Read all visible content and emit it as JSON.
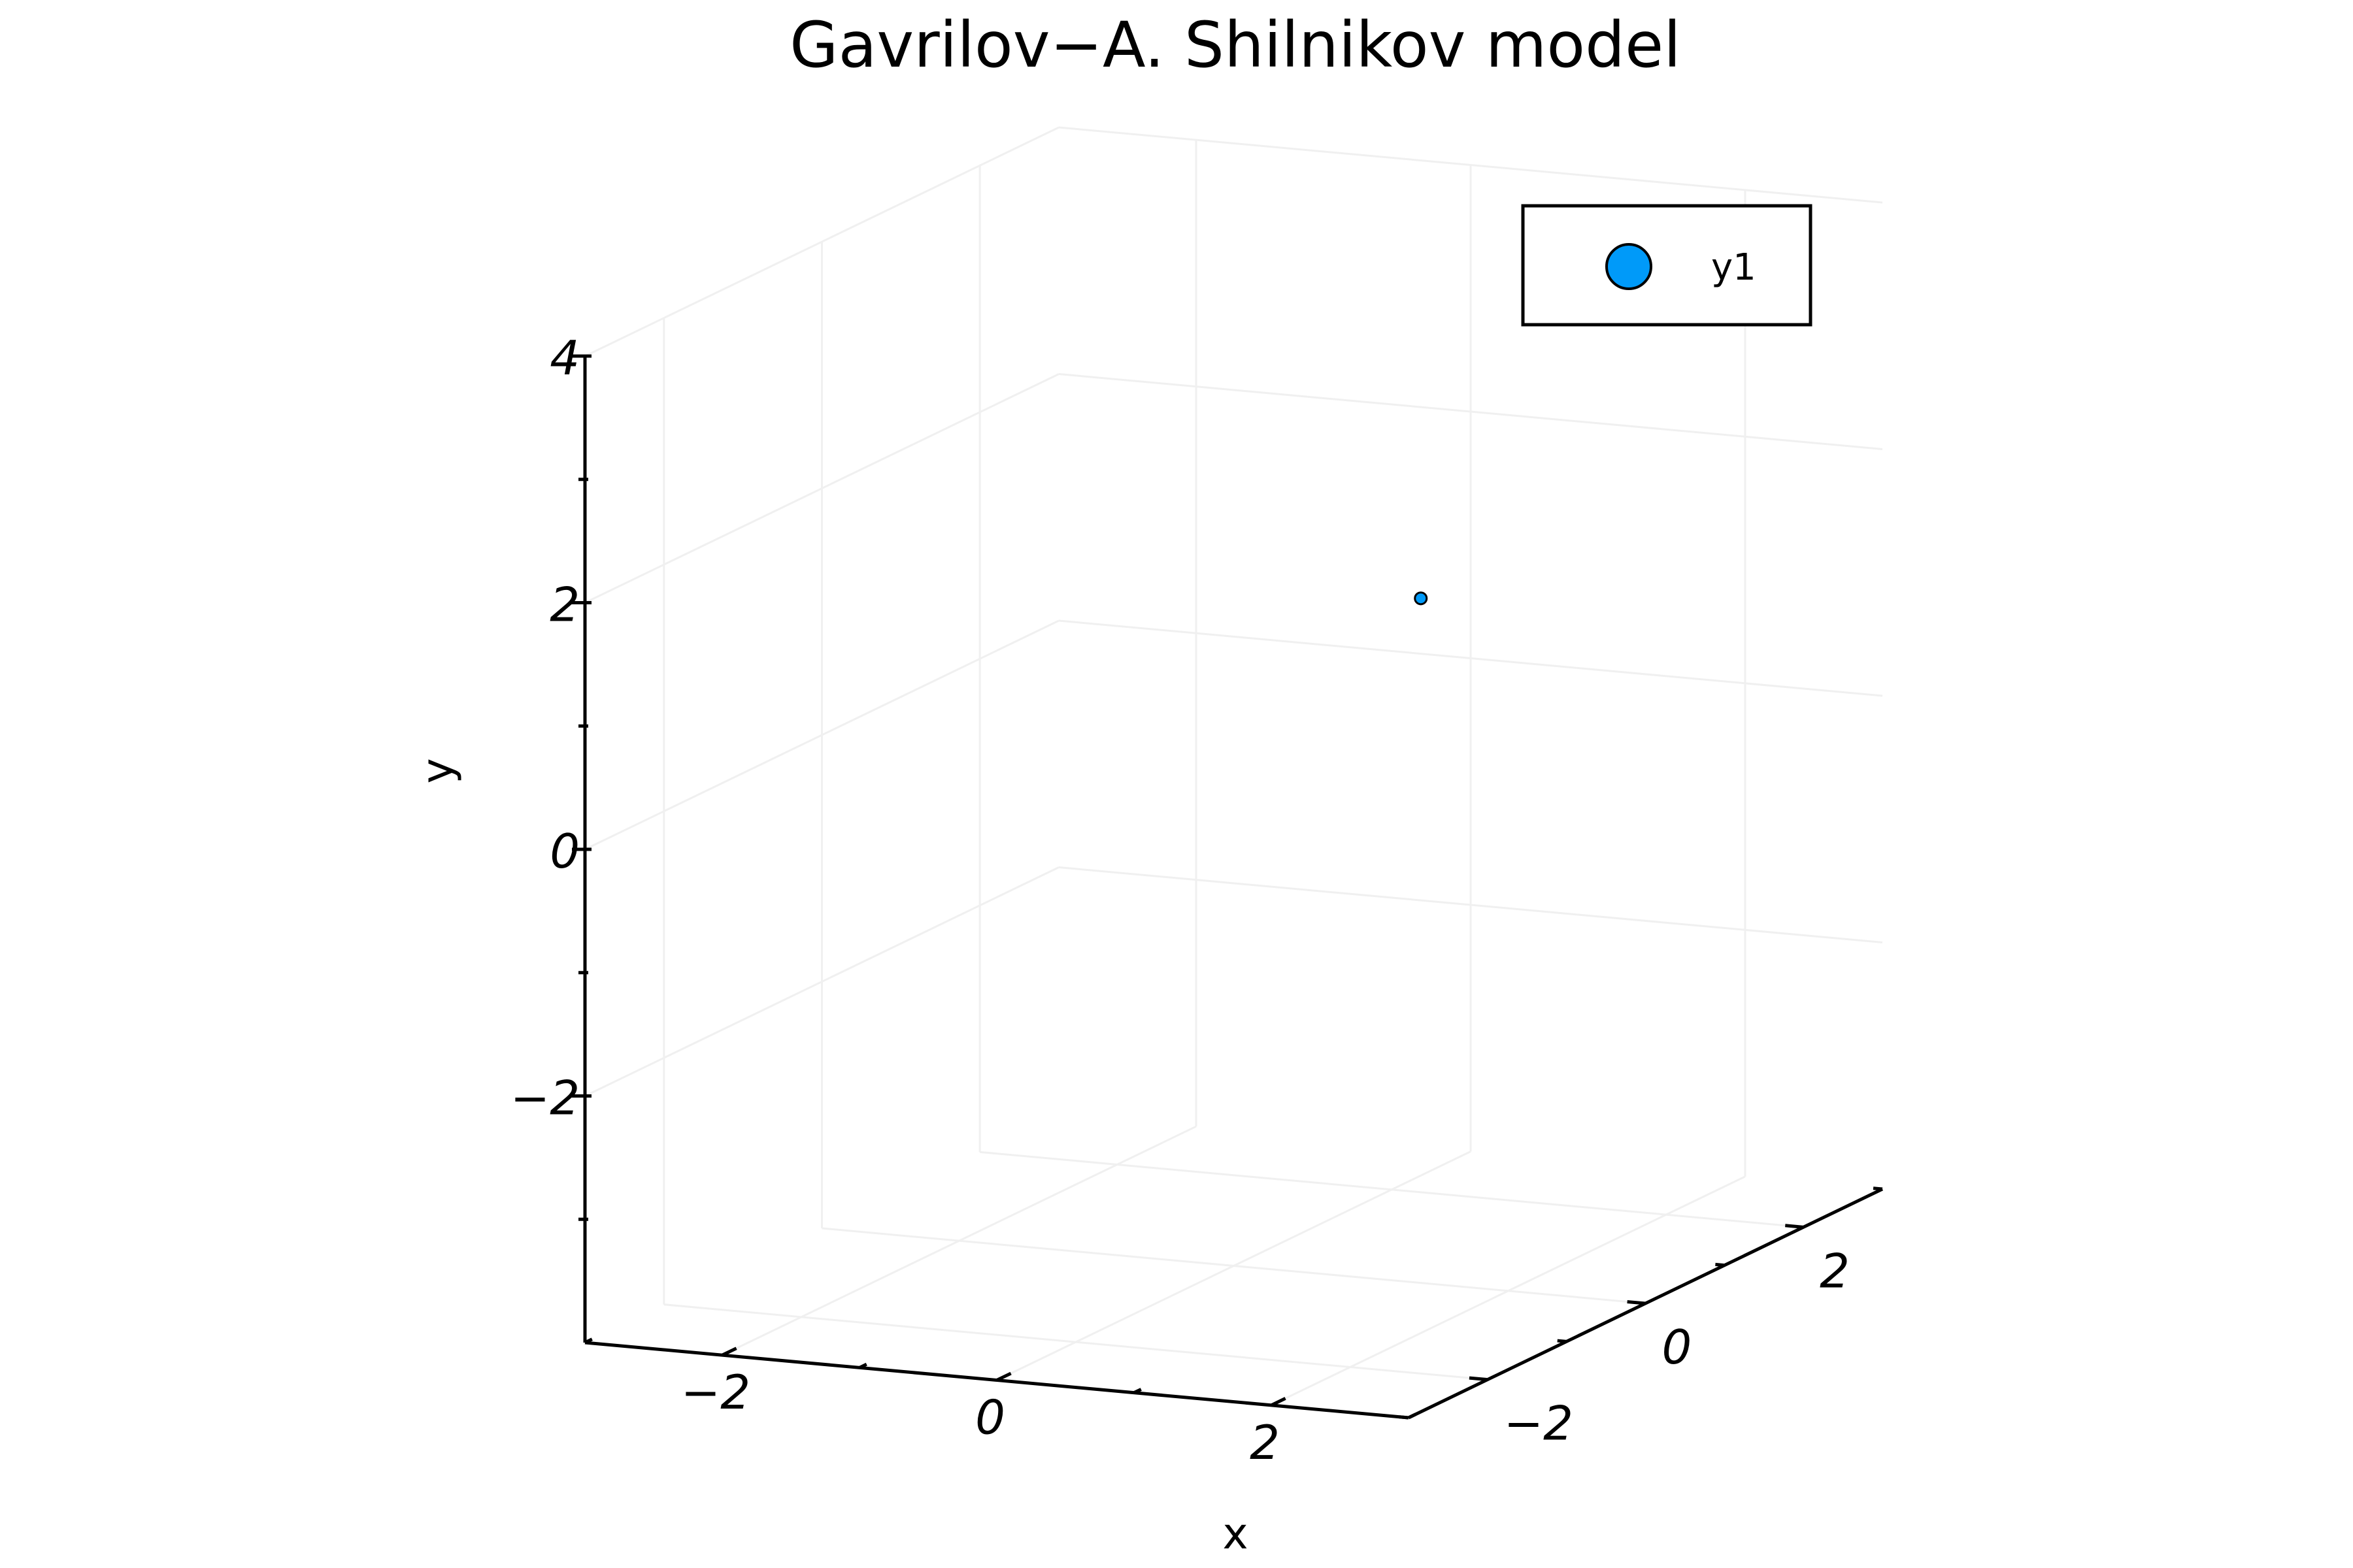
{
  "chart_data": {
    "type": "scatter",
    "title": "Gavrilov−A. Shilnikov model",
    "xlabel": "x",
    "ylabel": "y",
    "zlabel": "",
    "xlim": [
      -3,
      3
    ],
    "ylim": [
      -4,
      4
    ],
    "zlim": [
      -3,
      3
    ],
    "xticks": [
      -2,
      0,
      2
    ],
    "yticks": [
      -2,
      0,
      2,
      4
    ],
    "zticks": [
      -2,
      0,
      2
    ],
    "tick_labels": {
      "x": [
        "−2",
        "0",
        "2"
      ],
      "y": [
        "−2",
        "0",
        "2",
        "4"
      ],
      "z": [
        "−2",
        "0",
        "2"
      ]
    },
    "grid": true,
    "legend": "top-right",
    "series": [
      {
        "name": "y1",
        "color": "#009af9",
        "points": [
          {
            "x": 0.5,
            "y": 1.0,
            "z": 1.5
          }
        ]
      }
    ]
  }
}
